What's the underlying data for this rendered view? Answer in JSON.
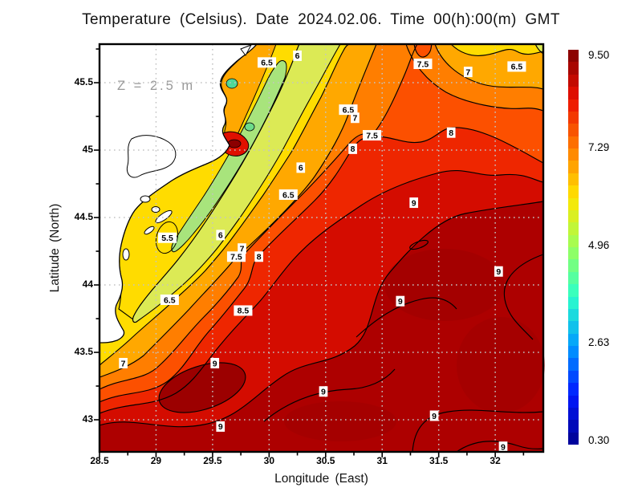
{
  "title": "Temperature (Celsius). Date 2024.02.06. Time 00(h):00(m) GMT",
  "annotation": "Z = 2.5 m",
  "axes": {
    "x": {
      "label": "Longitude (East)",
      "ticks": [
        "28.5",
        "29",
        "29.5",
        "30",
        "30.5",
        "31",
        "31.5",
        "32"
      ]
    },
    "y": {
      "label": "Latitude (North)",
      "ticks": [
        "45.5",
        "45",
        "44.5",
        "44",
        "43.5",
        "43"
      ]
    }
  },
  "colorbar": {
    "labels": [
      "9.50",
      "7.29",
      "4.96",
      "2.63",
      "0.30"
    ],
    "values": [
      9.5,
      7.29,
      4.96,
      2.63,
      0.3
    ],
    "min": 0.3,
    "max": 9.5,
    "colormap": "jet",
    "jet_stops": [
      "#00008f",
      "#0018ff",
      "#009cff",
      "#2cffca",
      "#9cff5a",
      "#ffe600",
      "#ff7d00",
      "#ec1000",
      "#7f0000"
    ]
  },
  "chart_data": {
    "type": "heatmap",
    "variable": "Temperature",
    "units": "Celsius",
    "date": "2024.02.06",
    "time": "00(h):00(m) GMT",
    "depth": "Z = 2.5 m",
    "title": "Temperature (Celsius). Date 2024.02.06. Time 00(h):00(m) GMT",
    "xlabel": "Longitude (East)",
    "ylabel": "Latitude (North)",
    "xlim": [
      28.5,
      32.425
    ],
    "ylim": [
      42.762,
      45.786
    ],
    "x_ticks": [
      28.5,
      29,
      29.5,
      30,
      30.5,
      31,
      31.5,
      32
    ],
    "y_ticks": [
      43,
      43.5,
      44,
      44.5,
      45,
      45.5
    ],
    "minor_tick_step": 0.25,
    "grid": "dotted, 0.5 degree spacing",
    "colorbar_range": [
      0.3,
      9.5
    ],
    "colorbar_tick_labels": [
      "9.50",
      "7.29",
      "4.96",
      "2.63",
      "0.30"
    ],
    "contour_levels": [
      5.5,
      6,
      6.5,
      7,
      7.5,
      8,
      8.5,
      9
    ],
    "contour_labels": [
      {
        "v": "6.5",
        "lon": 29.98,
        "lat": 45.65
      },
      {
        "v": "6",
        "lon": 30.25,
        "lat": 45.7
      },
      {
        "v": "7.5",
        "lon": 31.36,
        "lat": 45.64
      },
      {
        "v": "7",
        "lon": 31.76,
        "lat": 45.58
      },
      {
        "v": "6.5",
        "lon": 32.19,
        "lat": 45.62
      },
      {
        "v": "6.5",
        "lon": 30.7,
        "lat": 45.3
      },
      {
        "v": "7",
        "lon": 30.76,
        "lat": 45.24
      },
      {
        "v": "7.5",
        "lon": 30.91,
        "lat": 45.11
      },
      {
        "v": "8",
        "lon": 30.74,
        "lat": 45.01
      },
      {
        "v": "8",
        "lon": 31.61,
        "lat": 45.13
      },
      {
        "v": "6",
        "lon": 30.28,
        "lat": 44.87
      },
      {
        "v": "6.5",
        "lon": 30.17,
        "lat": 44.67
      },
      {
        "v": "9",
        "lon": 31.28,
        "lat": 44.61
      },
      {
        "v": "5.5",
        "lon": 29.1,
        "lat": 44.35
      },
      {
        "v": "6",
        "lon": 29.57,
        "lat": 44.37
      },
      {
        "v": "7",
        "lon": 29.76,
        "lat": 44.27
      },
      {
        "v": "7.5",
        "lon": 29.71,
        "lat": 44.21
      },
      {
        "v": "8",
        "lon": 29.91,
        "lat": 44.21
      },
      {
        "v": "9",
        "lon": 32.03,
        "lat": 44.1
      },
      {
        "v": "6.5",
        "lon": 29.12,
        "lat": 43.89
      },
      {
        "v": "8.5",
        "lon": 29.77,
        "lat": 43.81
      },
      {
        "v": "9",
        "lon": 31.16,
        "lat": 43.88
      },
      {
        "v": "7",
        "lon": 28.71,
        "lat": 43.42
      },
      {
        "v": "9",
        "lon": 29.52,
        "lat": 43.42
      },
      {
        "v": "9",
        "lon": 30.48,
        "lat": 43.21
      },
      {
        "v": "9",
        "lon": 29.57,
        "lat": 42.95
      },
      {
        "v": "9",
        "lon": 31.46,
        "lat": 43.03
      },
      {
        "v": "9",
        "lon": 32.07,
        "lat": 42.8
      }
    ],
    "field_gradient": "cold (5-6.5 C) greenish-yellow pool along NW coast, warm (8.5-9.5 C) dark red water in SE offshore, cooler 6.5-7 C band in NE corner"
  }
}
